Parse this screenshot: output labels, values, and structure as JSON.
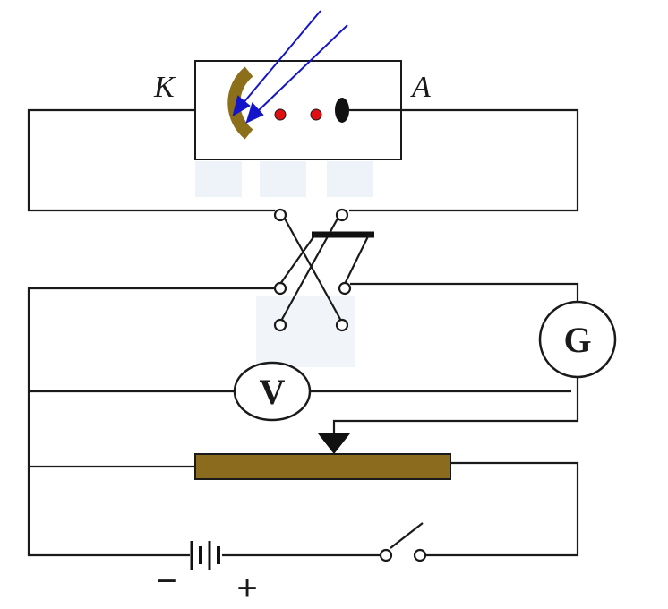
{
  "labels": {
    "cathode": "K",
    "anode": "A",
    "voltmeter": "V",
    "galvanometer": "G",
    "battery_negative": "−",
    "battery_positive": "+"
  },
  "colors": {
    "wire": "#1a1a1a",
    "light_ray": "#1414c8",
    "cathode_plate": "#8b6f1a",
    "rheostat_bar": "#8b6b1e",
    "electron_dot": "#e01010",
    "watermark": "#dfe9f2"
  }
}
